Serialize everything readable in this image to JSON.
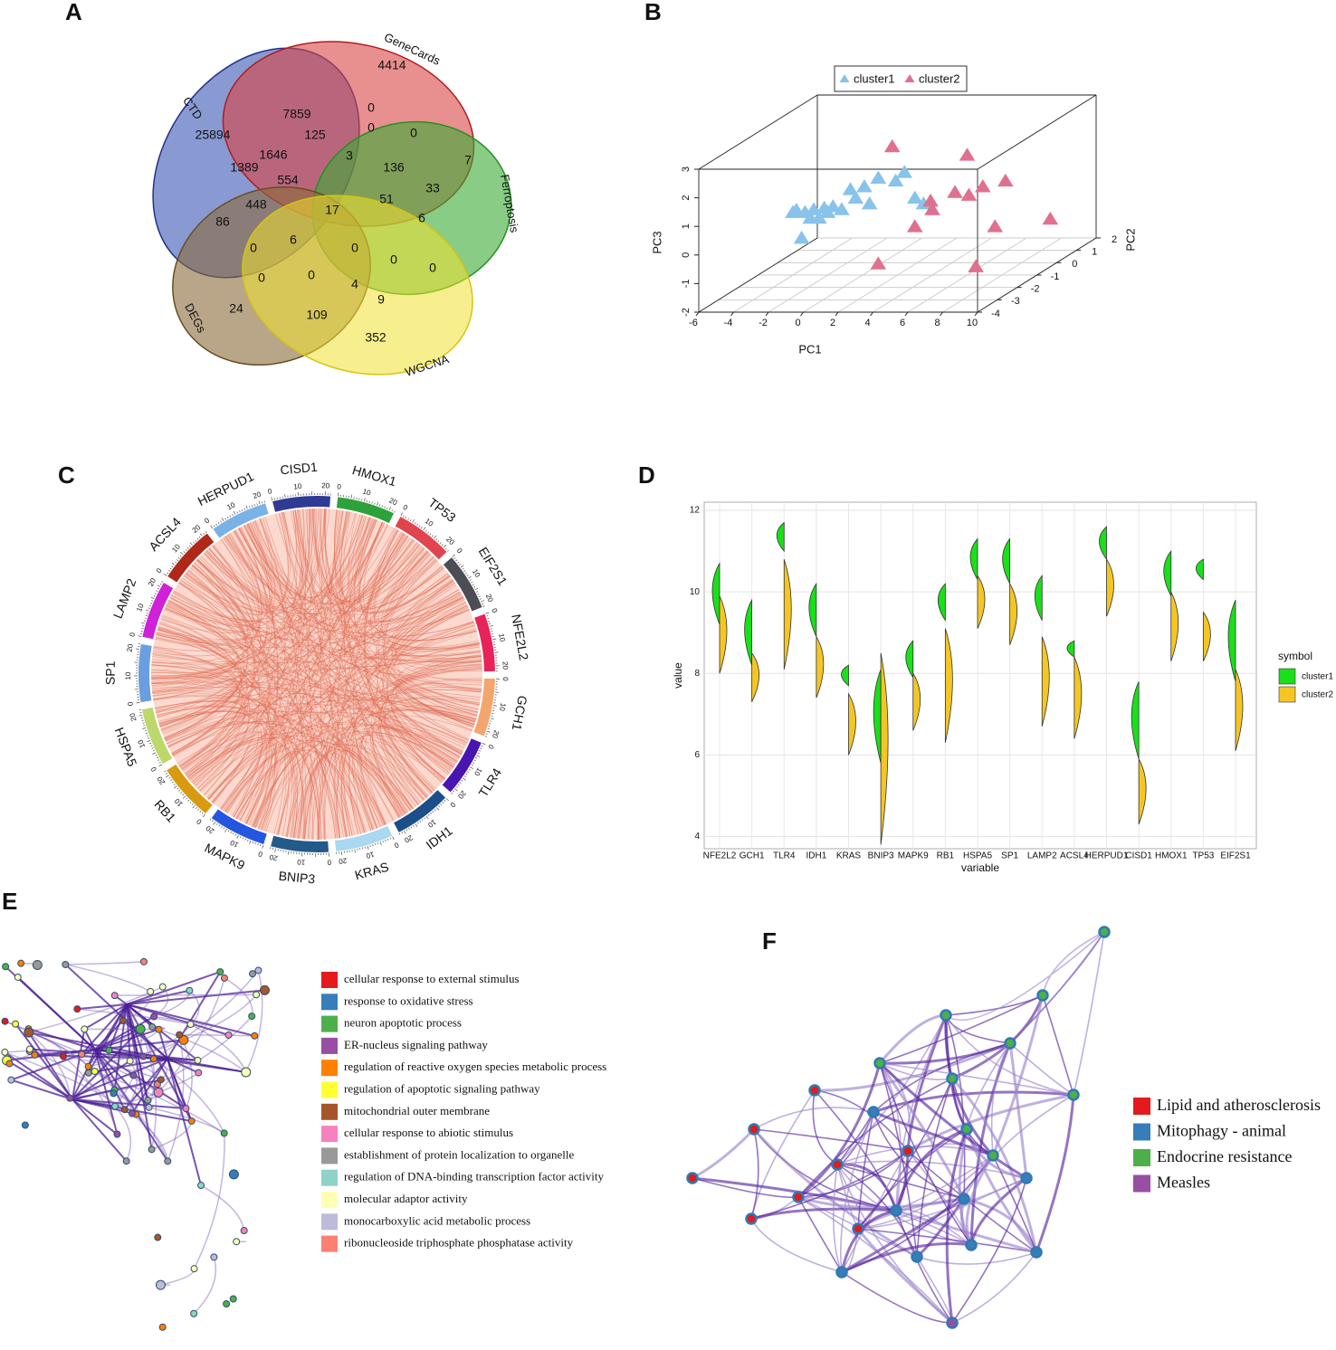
{
  "panels": {
    "A": {
      "letter": "A",
      "sets": [
        "CTD",
        "GeneCards",
        "Ferroptosis",
        "DEGs",
        "WGCNA"
      ],
      "counts": [
        4414,
        7859,
        0,
        25894,
        125,
        0,
        0,
        1646,
        3,
        1389,
        136,
        7,
        554,
        33,
        17,
        51,
        448,
        6,
        86,
        6,
        0,
        0,
        0,
        0,
        0,
        0,
        4,
        9,
        24,
        109,
        352
      ]
    },
    "B": {
      "letter": "B",
      "type": "scatter3d",
      "x_label": "PC1",
      "y_label": "PC2",
      "z_label": "PC3",
      "xlim": [
        -6,
        10
      ],
      "xticks": [
        -6,
        -4,
        -2,
        0,
        2,
        4,
        6,
        8,
        10
      ],
      "ylim": [
        -4,
        2
      ],
      "yticks": [
        -4,
        -3,
        -2,
        -1,
        0,
        1,
        2
      ],
      "zlim": [
        -2,
        3
      ],
      "zticks": [
        -2,
        -1,
        0,
        1,
        2,
        3
      ],
      "series": [
        {
          "name": "cluster1",
          "color": "#87c3ea",
          "pc1": [
            -3.8,
            -3.3,
            -2.8,
            -2.2,
            -1.7,
            -3.5,
            -3.0,
            -2.5,
            -2.0,
            -0.7,
            -0.4,
            0.1,
            0.9,
            1.9,
            2.4,
            3.0,
            3.5,
            0.4,
            -1.2,
            -4.0
          ],
          "pc2": [
            -1,
            -1,
            -1,
            -1,
            -1,
            -1,
            -1,
            -1,
            -1,
            -1,
            -1,
            -1,
            -1,
            -1,
            -1,
            -1,
            -1,
            -1,
            -1,
            -1
          ],
          "pc3": [
            0.28,
            0.2,
            0.3,
            0.35,
            0.4,
            -0.7,
            0.0,
            0.0,
            0.2,
            1.0,
            0.7,
            1.1,
            1.4,
            1.3,
            1.6,
            0.7,
            0.5,
            0.5,
            0.3,
            0.2
          ]
        },
        {
          "name": "cluster2",
          "color": "#e0708f",
          "pc1": [
            1.7,
            6.0,
            8.2,
            6.9,
            5.3,
            6.1,
            3.9,
            4.0,
            8.5,
            7.6,
            3.0,
            0.9,
            6.5
          ],
          "pc2": [
            -1,
            -1,
            -1,
            -1,
            -1,
            -1,
            -1,
            -1,
            1,
            -1,
            -1,
            -1,
            -1
          ],
          "pc3": [
            2.5,
            2.2,
            1.3,
            1.1,
            0.9,
            0.8,
            0.6,
            0.3,
            -0.9,
            -0.3,
            -0.3,
            -1.6,
            -1.7
          ]
        }
      ]
    },
    "C": {
      "letter": "C",
      "type": "chord",
      "genes": [
        "CISD1",
        "HMOX1",
        "TP53",
        "EIF2S1",
        "NFE2L2",
        "GCH1",
        "TLR4",
        "IDH1",
        "KRAS",
        "BNIP3",
        "MAPK9",
        "RB1",
        "HSPA5",
        "SP1",
        "LAMP2",
        "ACSL4",
        "HERPUD1"
      ],
      "colors": [
        "#2e3a94",
        "#2ea23a",
        "#e0454f",
        "#4d4d55",
        "#e8235a",
        "#f2a66e",
        "#4a14b0",
        "#1c4f8a",
        "#a9d8f0",
        "#245a8a",
        "#2456e0",
        "#d89a10",
        "#bcd86a",
        "#6a9ee0",
        "#d020d8",
        "#b02818",
        "#7ab2e8"
      ],
      "ticks": [
        0,
        10,
        20
      ]
    },
    "D": {
      "letter": "D",
      "type": "split-violin",
      "x_label": "variable",
      "y_label": "value",
      "legend_title": "symbol",
      "categories": [
        "NFE2L2",
        "GCH1",
        "TLR4",
        "IDH1",
        "KRAS",
        "BNIP3",
        "MAPK9",
        "RB1",
        "HSPA5",
        "SP1",
        "LAMP2",
        "ACSL4",
        "HERPUD1",
        "CISD1",
        "HMOX1",
        "TP53",
        "EIF2S1"
      ],
      "ylim": [
        3.7,
        12.2
      ],
      "yticks": [
        4,
        6,
        8,
        10,
        12
      ],
      "series": [
        {
          "name": "cluster1",
          "color": "#19e019",
          "ranges": [
            [
              9.2,
              10.7
            ],
            [
              8.2,
              9.8
            ],
            [
              11.0,
              11.7
            ],
            [
              8.9,
              10.2
            ],
            [
              7.7,
              8.2
            ],
            [
              5.8,
              8.1
            ],
            [
              7.9,
              8.8
            ],
            [
              9.3,
              10.2
            ],
            [
              10.3,
              11.3
            ],
            [
              10.2,
              11.3
            ],
            [
              9.3,
              10.4
            ],
            [
              8.4,
              8.8
            ],
            [
              10.8,
              11.6
            ],
            [
              5.9,
              7.8
            ],
            [
              9.9,
              11.0
            ],
            [
              10.3,
              10.8
            ],
            [
              7.8,
              9.8
            ]
          ]
        },
        {
          "name": "cluster2",
          "color": "#f5c623",
          "ranges": [
            [
              8.0,
              9.9
            ],
            [
              7.3,
              8.5
            ],
            [
              8.1,
              10.8
            ],
            [
              7.4,
              8.9
            ],
            [
              6.0,
              7.5
            ],
            [
              3.8,
              8.5
            ],
            [
              6.6,
              8.0
            ],
            [
              6.3,
              9.1
            ],
            [
              9.1,
              10.4
            ],
            [
              8.7,
              10.2
            ],
            [
              6.7,
              8.9
            ],
            [
              6.4,
              8.4
            ],
            [
              9.4,
              10.8
            ],
            [
              4.3,
              5.9
            ],
            [
              8.3,
              10.0
            ],
            [
              8.3,
              9.5
            ],
            [
              6.1,
              8.1
            ]
          ]
        }
      ]
    },
    "E": {
      "letter": "E",
      "legend": [
        {
          "label": "cellular response to external stimulus",
          "color": "#e41a1c"
        },
        {
          "label": "response to oxidative stress",
          "color": "#377eb8"
        },
        {
          "label": "neuron apoptotic process",
          "color": "#4daf4a"
        },
        {
          "label": "ER-nucleus signaling pathway",
          "color": "#984ea3"
        },
        {
          "label": "regulation of reactive oxygen species metabolic process",
          "color": "#ff7f00"
        },
        {
          "label": "regulation of apoptotic signaling pathway",
          "color": "#ffff33"
        },
        {
          "label": "mitochondrial outer membrane",
          "color": "#a65628"
        },
        {
          "label": "cellular response to abiotic stimulus",
          "color": "#f781bf"
        },
        {
          "label": "establishment of protein localization to organelle",
          "color": "#999999"
        },
        {
          "label": "regulation of DNA-binding transcription factor activity",
          "color": "#8dd3c7"
        },
        {
          "label": "molecular adaptor activity",
          "color": "#ffffb3"
        },
        {
          "label": "monocarboxylic acid metabolic process",
          "color": "#bebada"
        },
        {
          "label": "ribonucleoside triphosphate phosphatase activity",
          "color": "#fb8072"
        }
      ]
    },
    "F": {
      "letter": "F",
      "legend": [
        {
          "label": "Lipid and atherosclerosis",
          "color": "#e41a1c"
        },
        {
          "label": "Mitophagy - animal",
          "color": "#377eb8"
        },
        {
          "label": "Endocrine resistance",
          "color": "#4daf4a"
        },
        {
          "label": "Measles",
          "color": "#984ea3"
        }
      ]
    }
  }
}
